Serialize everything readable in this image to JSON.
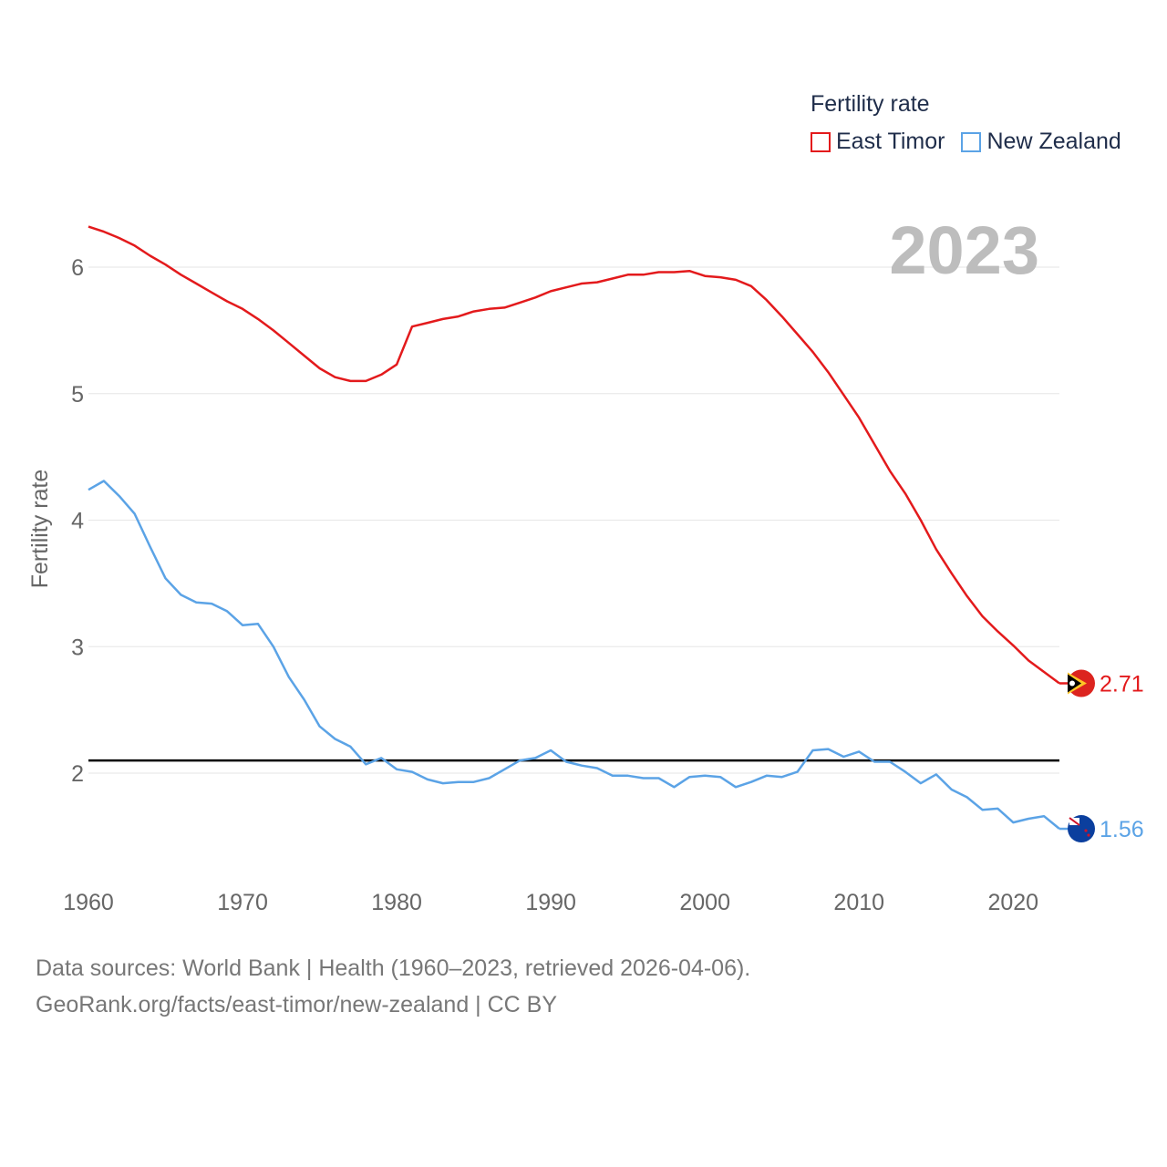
{
  "legend": {
    "title": "Fertility rate",
    "items": [
      {
        "label": "East Timor",
        "color": "#e31a1c"
      },
      {
        "label": "New Zealand",
        "color": "#5ba3e6"
      }
    ]
  },
  "footer": {
    "line1": "Data sources: World Bank | Health (1960–2023, retrieved 2026-04-06).",
    "line2": "GeoRank.org/facts/east-timor/new-zealand | CC BY"
  },
  "chart_data": {
    "type": "line",
    "title": "Fertility rate",
    "year_label": "2023",
    "xlabel": "",
    "ylabel": "Fertility rate",
    "xlim": [
      1960,
      2023
    ],
    "ylim": [
      1.3,
      6.5
    ],
    "yticks": [
      2,
      3,
      4,
      5,
      6
    ],
    "xticks": [
      1960,
      1970,
      1980,
      1990,
      2000,
      2010,
      2020
    ],
    "reference_line": 2.1,
    "x": [
      1960,
      1961,
      1962,
      1963,
      1964,
      1965,
      1966,
      1967,
      1968,
      1969,
      1970,
      1971,
      1972,
      1973,
      1974,
      1975,
      1976,
      1977,
      1978,
      1979,
      1980,
      1981,
      1982,
      1983,
      1984,
      1985,
      1986,
      1987,
      1988,
      1989,
      1990,
      1991,
      1992,
      1993,
      1994,
      1995,
      1996,
      1997,
      1998,
      1999,
      2000,
      2001,
      2002,
      2003,
      2004,
      2005,
      2006,
      2007,
      2008,
      2009,
      2010,
      2011,
      2012,
      2013,
      2014,
      2015,
      2016,
      2017,
      2018,
      2019,
      2020,
      2021,
      2022,
      2023
    ],
    "series": [
      {
        "name": "East Timor",
        "color": "#e31a1c",
        "end_label": "2.71",
        "values": [
          6.32,
          6.28,
          6.23,
          6.17,
          6.09,
          6.02,
          5.94,
          5.87,
          5.8,
          5.73,
          5.67,
          5.59,
          5.5,
          5.4,
          5.3,
          5.2,
          5.13,
          5.1,
          5.1,
          5.15,
          5.23,
          5.53,
          5.56,
          5.59,
          5.61,
          5.65,
          5.67,
          5.68,
          5.72,
          5.76,
          5.81,
          5.84,
          5.87,
          5.88,
          5.91,
          5.94,
          5.94,
          5.96,
          5.96,
          5.97,
          5.93,
          5.92,
          5.9,
          5.85,
          5.74,
          5.61,
          5.47,
          5.33,
          5.17,
          4.99,
          4.81,
          4.6,
          4.39,
          4.21,
          4.0,
          3.77,
          3.58,
          3.4,
          3.24,
          3.12,
          3.01,
          2.89,
          2.8,
          2.71
        ]
      },
      {
        "name": "New Zealand",
        "color": "#5ba3e6",
        "end_label": "1.56",
        "values": [
          4.24,
          4.31,
          4.19,
          4.05,
          3.79,
          3.54,
          3.41,
          3.35,
          3.34,
          3.28,
          3.17,
          3.18,
          3.0,
          2.76,
          2.58,
          2.37,
          2.27,
          2.21,
          2.07,
          2.12,
          2.03,
          2.01,
          1.95,
          1.92,
          1.93,
          1.93,
          1.96,
          2.03,
          2.1,
          2.12,
          2.18,
          2.09,
          2.06,
          2.04,
          1.98,
          1.98,
          1.96,
          1.96,
          1.89,
          1.97,
          1.98,
          1.97,
          1.89,
          1.93,
          1.98,
          1.97,
          2.01,
          2.18,
          2.19,
          2.13,
          2.17,
          2.09,
          2.09,
          2.01,
          1.92,
          1.99,
          1.87,
          1.81,
          1.71,
          1.72,
          1.61,
          1.64,
          1.66,
          1.56
        ]
      }
    ]
  }
}
